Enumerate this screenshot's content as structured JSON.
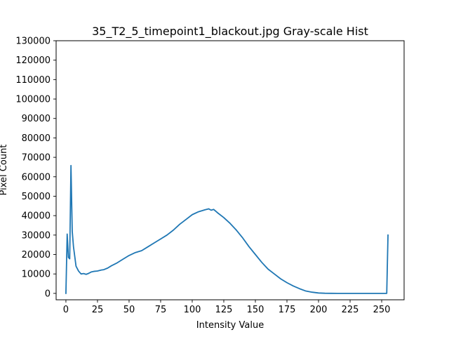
{
  "chart_data": {
    "type": "line",
    "title": "35_T2_5_timepoint1_blackout.jpg Gray-scale Hist",
    "xlabel": "Intensity Value",
    "ylabel": "Pixel Count",
    "xlim": [
      -7.75,
      267.75
    ],
    "ylim": [
      -3300,
      130000
    ],
    "xticks": [
      0,
      25,
      50,
      75,
      100,
      125,
      150,
      175,
      200,
      225,
      250
    ],
    "yticks": [
      0,
      10000,
      20000,
      30000,
      40000,
      50000,
      60000,
      70000,
      80000,
      90000,
      100000,
      110000,
      120000,
      130000
    ],
    "grid": false,
    "line_color": "#1f77b4",
    "series": [
      {
        "x": [
          0,
          1,
          2,
          3,
          4,
          5,
          6,
          7,
          8,
          10,
          12,
          14,
          16,
          18,
          20,
          22,
          25,
          28,
          30,
          33,
          36,
          40,
          45,
          50,
          55,
          60,
          65,
          70,
          75,
          80,
          85,
          90,
          95,
          100,
          105,
          110,
          113,
          115,
          117,
          120,
          125,
          130,
          135,
          140,
          145,
          150,
          155,
          160,
          165,
          170,
          175,
          180,
          185,
          190,
          195,
          200,
          205,
          210,
          215,
          220,
          225,
          230,
          235,
          240,
          245,
          250,
          254,
          255
        ],
        "y": [
          0,
          30500,
          18500,
          17800,
          65800,
          32000,
          24000,
          19000,
          14000,
          11500,
          10000,
          10200,
          9800,
          10300,
          11000,
          11300,
          11500,
          12000,
          12200,
          13000,
          14200,
          15500,
          17500,
          19500,
          21000,
          22000,
          24000,
          26000,
          28000,
          30000,
          32500,
          35500,
          38000,
          40500,
          42000,
          43000,
          43500,
          42800,
          43200,
          41500,
          39000,
          36000,
          32500,
          28500,
          24000,
          20000,
          16000,
          12500,
          10000,
          7500,
          5500,
          3800,
          2400,
          1200,
          600,
          200,
          60,
          20,
          10,
          5,
          5,
          5,
          5,
          5,
          5,
          5,
          5,
          30000
        ]
      }
    ]
  }
}
